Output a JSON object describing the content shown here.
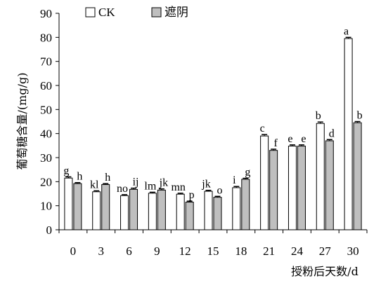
{
  "chart_data": {
    "type": "bar",
    "title": "",
    "xlabel": "授粉后天数/d",
    "ylabel": "葡萄糖含量/(mg/g)",
    "ylim": [
      0,
      90
    ],
    "yticks": [
      0,
      10,
      20,
      30,
      40,
      50,
      60,
      70,
      80,
      90
    ],
    "categories": [
      "0",
      "3",
      "6",
      "9",
      "12",
      "15",
      "18",
      "21",
      "24",
      "27",
      "30"
    ],
    "legend_position": "top-left",
    "grid": false,
    "series": [
      {
        "name": "CK",
        "fill": "#ffffff",
        "values": [
          21.5,
          15.8,
          14.2,
          15.2,
          14.8,
          16.0,
          17.5,
          39.0,
          34.8,
          44.2,
          79.5
        ],
        "errors": [
          0.5,
          0.4,
          0.4,
          0.4,
          0.4,
          0.4,
          0.5,
          0.6,
          0.5,
          0.6,
          0.5
        ],
        "sig": [
          "g",
          "kl",
          "no",
          "lm",
          "mn",
          "jk",
          "i",
          "c",
          "e",
          "b",
          "a"
        ]
      },
      {
        "name": "遮阴",
        "fill": "#bfbfbf",
        "values": [
          19.2,
          18.8,
          16.8,
          16.5,
          11.5,
          13.5,
          21.0,
          33.0,
          34.8,
          37.0,
          44.5
        ],
        "errors": [
          0.4,
          0.4,
          0.5,
          0.5,
          0.4,
          0.4,
          0.4,
          0.5,
          0.5,
          0.5,
          0.5
        ],
        "sig": [
          "h",
          "h",
          "ij",
          "jk",
          "p",
          "o",
          "g",
          "f",
          "e",
          "d",
          "b"
        ]
      }
    ]
  }
}
